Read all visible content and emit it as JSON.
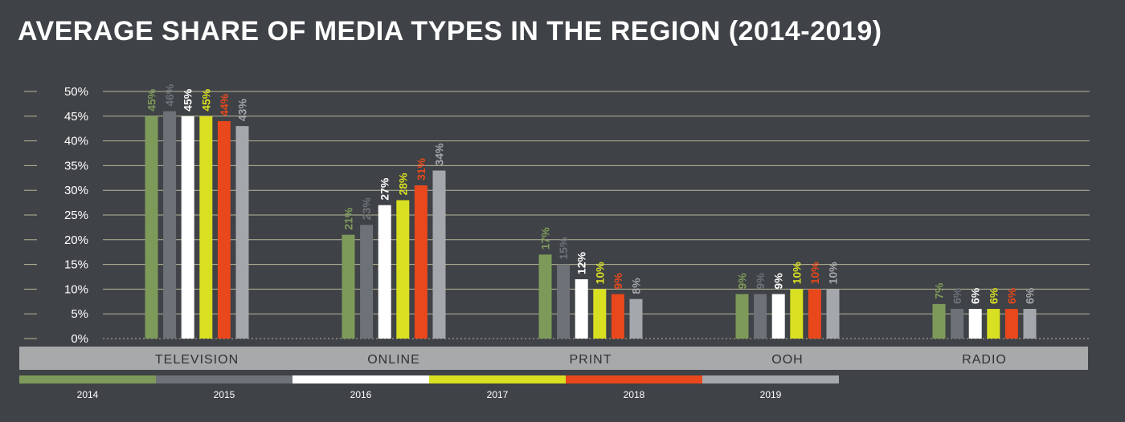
{
  "chart_data": {
    "type": "bar",
    "title": "AVERAGE SHARE OF MEDIA TYPES IN THE REGION (2014-2019)",
    "categories": [
      "TELEVISION",
      "ONLINE",
      "PRINT",
      "OOH",
      "RADIO"
    ],
    "series": [
      {
        "name": "2014",
        "color": "#7e9a5a",
        "values": [
          45,
          21,
          17,
          9,
          7
        ],
        "labels": [
          "45%",
          "21%",
          "17%",
          "9%",
          "7%"
        ]
      },
      {
        "name": "2015",
        "color": "#6d7278",
        "values": [
          46,
          23,
          15,
          9,
          6
        ],
        "labels": [
          "46%",
          "23%",
          "15%",
          "9%",
          "6%"
        ]
      },
      {
        "name": "2016",
        "color": "#ffffff",
        "values": [
          45,
          27,
          12,
          9,
          6
        ],
        "labels": [
          "45%",
          "27%",
          "12%",
          "9%",
          "6%"
        ]
      },
      {
        "name": "2017",
        "color": "#d9e021",
        "values": [
          45,
          28,
          10,
          10,
          6
        ],
        "labels": [
          "45%",
          "28%",
          "10%",
          "10%",
          "6%"
        ]
      },
      {
        "name": "2018",
        "color": "#e8481c",
        "values": [
          44,
          31,
          9,
          10,
          6
        ],
        "labels": [
          "44%",
          "31%",
          "9%",
          "10%",
          "6%"
        ]
      },
      {
        "name": "2019",
        "color": "#a4a8ac",
        "values": [
          43,
          34,
          8,
          10,
          6
        ],
        "labels": [
          "43%",
          "34%",
          "8%",
          "10%",
          "6%"
        ]
      }
    ],
    "yticks": [
      {
        "value": 0,
        "label": "0%"
      },
      {
        "value": 5,
        "label": "5%"
      },
      {
        "value": 10,
        "label": "10%"
      },
      {
        "value": 15,
        "label": "15%"
      },
      {
        "value": 20,
        "label": "20%"
      },
      {
        "value": 25,
        "label": "25%"
      },
      {
        "value": 30,
        "label": "30%"
      },
      {
        "value": 35,
        "label": "35%"
      },
      {
        "value": 40,
        "label": "40%"
      },
      {
        "value": 45,
        "label": "45%"
      },
      {
        "value": 50,
        "label": "50%"
      }
    ],
    "ylim": [
      0,
      50
    ],
    "grid": true,
    "legend_position": "bottom",
    "colors": {
      "background": "#3f4246",
      "grid": "#b7b79a",
      "category_band": "#a8a9ab",
      "text": "#ffffff"
    }
  }
}
